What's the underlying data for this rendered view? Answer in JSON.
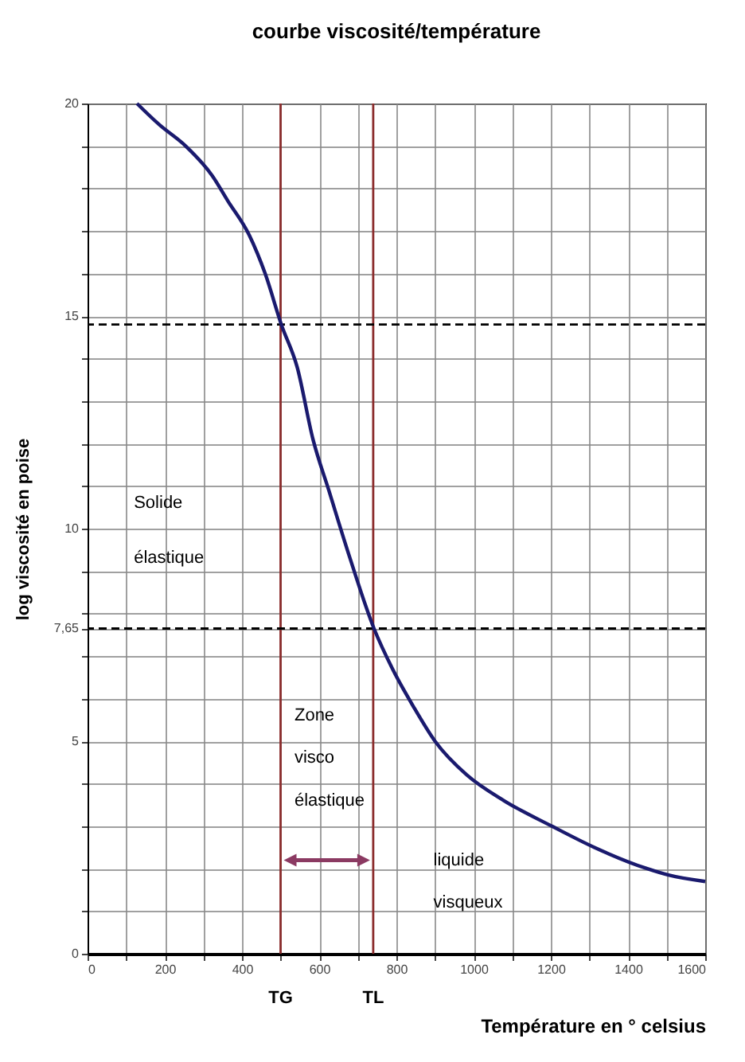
{
  "chart_data": {
    "type": "line",
    "title": "courbe viscosité/température",
    "xlabel": "Température en ° celsius",
    "ylabel": "log viscosité en poise",
    "x": [
      128,
      186,
      254,
      323,
      364,
      419,
      460,
      502,
      543,
      584,
      625,
      680,
      742,
      790,
      845,
      900,
      983,
      1079,
      1203,
      1313,
      1450,
      1505,
      1600
    ],
    "series": [
      {
        "color": "#1a1a6e",
        "values": [
          20,
          19.5,
          19.0,
          18.3,
          17.7,
          16.9,
          16.0,
          14.8,
          13.8,
          12.1,
          10.9,
          9.3,
          7.65,
          6.7,
          5.8,
          5.0,
          4.2,
          3.6,
          3.0,
          2.5,
          2.0,
          1.85,
          1.7
        ]
      }
    ],
    "xlim": [
      0,
      1600
    ],
    "ylim": [
      0,
      20
    ],
    "xticks": [
      0,
      {
        "value": 100,
        "label": null
      },
      200,
      {
        "value": 300,
        "label": null
      },
      400,
      {
        "value": 500,
        "label": null
      },
      600,
      {
        "value": 700,
        "label": null
      },
      800,
      {
        "value": 900,
        "label": null
      },
      1000,
      {
        "value": 1100,
        "label": null
      },
      1200,
      {
        "value": 1300,
        "label": null
      },
      1400,
      {
        "value": 1500,
        "label": null
      },
      1600
    ],
    "yticks": [
      0,
      {
        "value": 1,
        "label": null
      },
      {
        "value": 2,
        "label": null
      },
      {
        "value": 3,
        "label": null
      },
      {
        "value": 4,
        "label": null
      },
      5,
      {
        "value": 6,
        "label": null
      },
      {
        "value": 7,
        "label": null
      },
      {
        "value": 7.65,
        "label": "7,65"
      },
      {
        "value": 8,
        "label": null
      },
      {
        "value": 9,
        "label": null
      },
      10,
      {
        "value": 11,
        "label": null
      },
      {
        "value": 12,
        "label": null
      },
      {
        "value": 13,
        "label": null
      },
      {
        "value": 14,
        "label": null
      },
      15,
      {
        "value": 16,
        "label": null
      },
      {
        "value": 17,
        "label": null
      },
      {
        "value": 18,
        "label": null
      },
      {
        "value": 19,
        "label": null
      },
      20
    ],
    "grid": true,
    "ref_lines": [
      {
        "axis": "x",
        "value": 500,
        "label": "TG",
        "color": "#8b2c2c",
        "line_style": "solid"
      },
      {
        "axis": "x",
        "value": 740,
        "label": "TL",
        "color": "#8b2c2c",
        "line_style": "solid"
      },
      {
        "axis": "y",
        "value": 14.8,
        "label": null,
        "color": "#000000",
        "line_style": "dashed"
      },
      {
        "axis": "y",
        "value": 7.65,
        "label": null,
        "color": "#000000",
        "line_style": "dashed"
      }
    ],
    "annotations": [
      "Solide",
      "élastique",
      "Zone",
      "visco",
      "élastique",
      "liquide",
      "visqueux"
    ]
  }
}
